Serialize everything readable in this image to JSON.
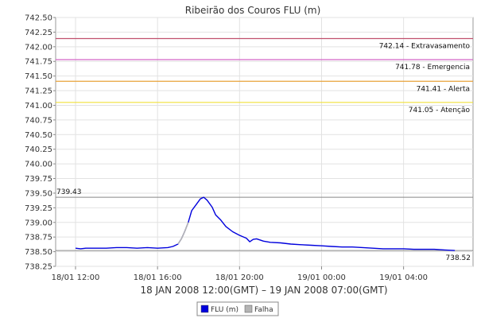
{
  "chart_data": {
    "type": "line",
    "title": "Ribeirão dos Couros FLU (m)",
    "xlabel": "18 JAN 2008 12:00(GMT) – 19 JAN 2008 07:00(GMT)",
    "ylabel": "",
    "ylim": [
      738.25,
      742.5
    ],
    "y_ticks": [
      "742.50",
      "742.25",
      "742.00",
      "741.75",
      "741.50",
      "741.25",
      "741.00",
      "740.75",
      "740.50",
      "740.25",
      "740.00",
      "739.75",
      "739.50",
      "739.25",
      "739.00",
      "738.75",
      "738.50",
      "738.25"
    ],
    "x_range": [
      "18/01 12:00",
      "19/01 07:00"
    ],
    "x_ticks": [
      {
        "t": "18/01 12:00",
        "label": "18/01 12:00"
      },
      {
        "t": "18/01 16:00",
        "label": "18/01 16:00"
      },
      {
        "t": "18/01 20:00",
        "label": "18/01 20:00"
      },
      {
        "t": "19/01 00:00",
        "label": "19/01 00:00"
      },
      {
        "t": "19/01 04:00",
        "label": "19/01 04:00"
      }
    ],
    "grid": true,
    "thresholds": [
      {
        "value": 742.14,
        "label": "742.14 - Extravasamento",
        "color": "#c0506e"
      },
      {
        "value": 741.78,
        "label": "741.78 - Emergencia",
        "color": "#d466c8"
      },
      {
        "value": 741.41,
        "label": "741.41 - Alerta",
        "color": "#e8a23a"
      },
      {
        "value": 741.05,
        "label": "741.05 - Atenção",
        "color": "#f0e03c"
      }
    ],
    "max_marker": {
      "value": 739.43,
      "label": "739.43",
      "color": "#888888"
    },
    "min_marker": {
      "value": 738.52,
      "label": "738.52",
      "color": "#888888"
    },
    "series": [
      {
        "name": "FLU (m)",
        "color": "#0000dd",
        "points": [
          [
            "18/01 12:00",
            738.56
          ],
          [
            "18/01 12:15",
            738.55
          ],
          [
            "18/01 12:30",
            738.56
          ],
          [
            "18/01 13:00",
            738.56
          ],
          [
            "18/01 13:30",
            738.56
          ],
          [
            "18/01 14:00",
            738.57
          ],
          [
            "18/01 14:30",
            738.57
          ],
          [
            "18/01 15:00",
            738.56
          ],
          [
            "18/01 15:30",
            738.57
          ],
          [
            "18/01 16:00",
            738.56
          ],
          [
            "18/01 16:30",
            738.57
          ],
          [
            "18/01 16:45",
            738.59
          ],
          [
            "18/01 17:00",
            738.63
          ],
          [
            "18/01 17:10",
            738.72
          ],
          [
            "18/01 17:20",
            738.85
          ],
          [
            "18/01 17:30",
            739.0
          ],
          [
            "18/01 17:40",
            739.2
          ],
          [
            "18/01 17:55",
            739.32
          ],
          [
            "18/01 18:05",
            739.4
          ],
          [
            "18/01 18:15",
            739.43
          ],
          [
            "18/01 18:25",
            739.38
          ],
          [
            "18/01 18:40",
            739.26
          ],
          [
            "18/01 18:50",
            739.13
          ],
          [
            "18/01 19:05",
            739.04
          ],
          [
            "18/01 19:20",
            738.93
          ],
          [
            "18/01 19:40",
            738.84
          ],
          [
            "18/01 20:00",
            738.78
          ],
          [
            "18/01 20:20",
            738.73
          ],
          [
            "18/01 20:30",
            738.67
          ],
          [
            "18/01 20:40",
            738.71
          ],
          [
            "18/01 20:50",
            738.72
          ],
          [
            "18/01 21:10",
            738.68
          ],
          [
            "18/01 21:30",
            738.66
          ],
          [
            "18/01 22:00",
            738.65
          ],
          [
            "18/01 22:30",
            738.63
          ],
          [
            "18/01 23:00",
            738.62
          ],
          [
            "18/01 23:30",
            738.61
          ],
          [
            "19/01 00:00",
            738.6
          ],
          [
            "19/01 00:30",
            738.59
          ],
          [
            "19/01 01:00",
            738.58
          ],
          [
            "19/01 01:30",
            738.58
          ],
          [
            "19/01 02:00",
            738.57
          ],
          [
            "19/01 02:30",
            738.56
          ],
          [
            "19/01 03:00",
            738.55
          ],
          [
            "19/01 03:30",
            738.55
          ],
          [
            "19/01 04:00",
            738.55
          ],
          [
            "19/01 04:30",
            738.54
          ],
          [
            "19/01 05:00",
            738.54
          ],
          [
            "19/01 05:30",
            738.54
          ],
          [
            "19/01 06:00",
            738.53
          ],
          [
            "19/01 06:30",
            738.52
          ]
        ]
      },
      {
        "name": "Falha",
        "color": "#b4b4b4",
        "points": [
          [
            "18/01 17:00",
            738.63
          ],
          [
            "18/01 17:10",
            738.72
          ],
          [
            "18/01 17:20",
            738.85
          ],
          [
            "18/01 17:30",
            739.0
          ]
        ]
      }
    ],
    "legend": {
      "placement": "bottom-center",
      "items": [
        "FLU (m)",
        "Falha"
      ]
    }
  }
}
